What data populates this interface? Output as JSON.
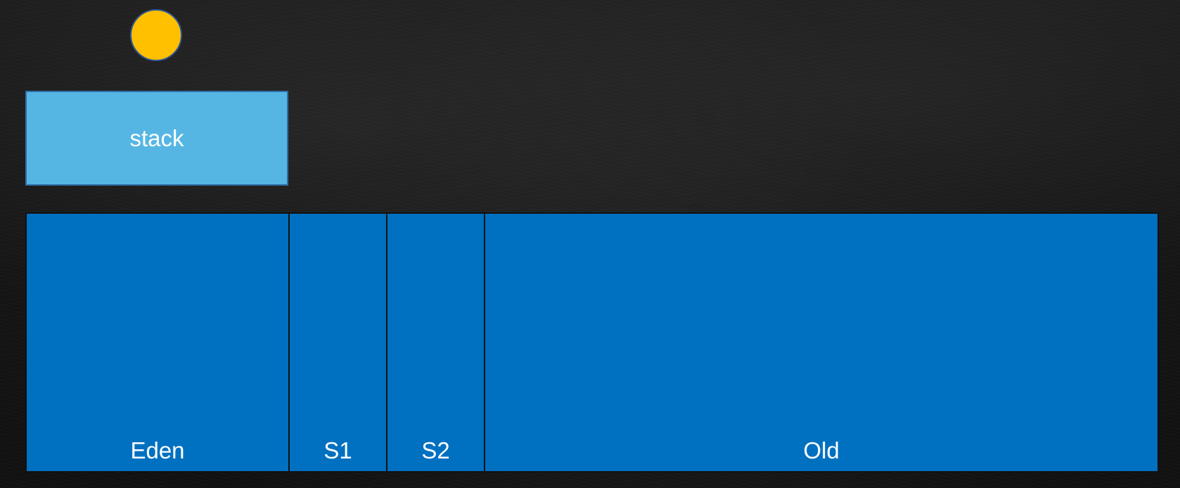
{
  "diagram": {
    "pointer": {
      "icon": "circle-marker-icon",
      "fill_color": "#ffc000",
      "border_color": "#2f5597"
    },
    "stack": {
      "label": "stack",
      "fill_color": "#56b6e3"
    },
    "heap": {
      "fill_color": "#0070c0",
      "regions": [
        {
          "label": "Eden"
        },
        {
          "label": "S1"
        },
        {
          "label": "S2"
        },
        {
          "label": "Old"
        }
      ]
    }
  }
}
